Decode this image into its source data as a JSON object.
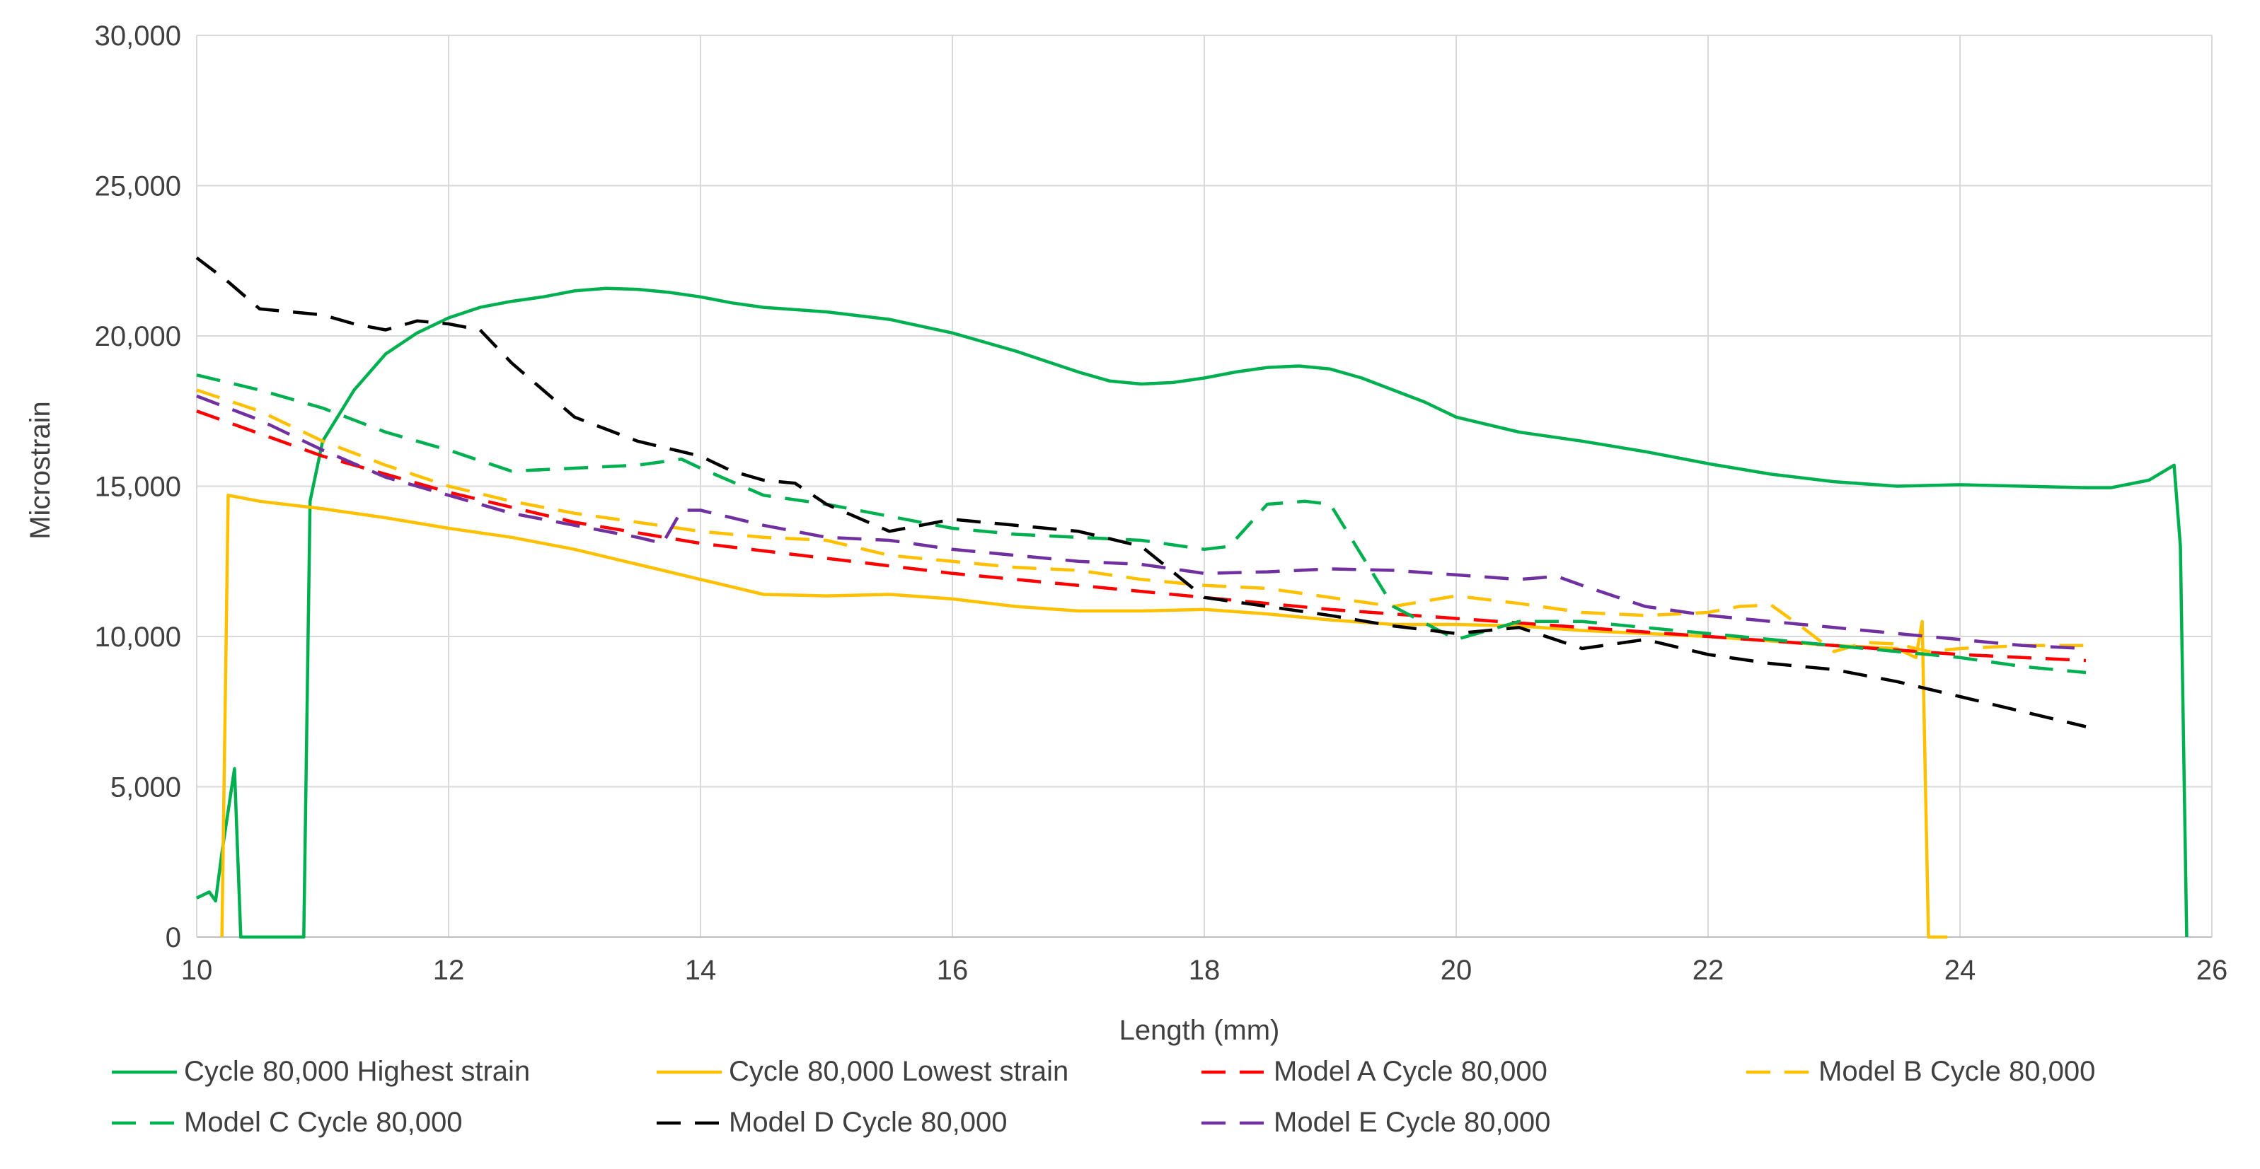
{
  "chart_data": {
    "type": "line",
    "title": "",
    "xlabel": "Length (mm)",
    "ylabel": "Microstrain",
    "xlim": [
      10,
      26
    ],
    "ylim": [
      0,
      30000
    ],
    "xticks": [
      10,
      12,
      14,
      16,
      18,
      20,
      22,
      24,
      26
    ],
    "xtick_labels": [
      "10",
      "12",
      "14",
      "16",
      "18",
      "20",
      "22",
      "24",
      "26"
    ],
    "yticks": [
      0,
      5000,
      10000,
      15000,
      20000,
      25000,
      30000
    ],
    "ytick_labels": [
      "0",
      "5,000",
      "10,000",
      "15,000",
      "20,000",
      "25,000",
      "30,000"
    ],
    "grid": true,
    "legend_position": "bottom",
    "series": [
      {
        "name": "Cycle 80,000 Highest strain",
        "color": "#00b050",
        "dash": "solid",
        "points": [
          [
            10,
            1300
          ],
          [
            10.1,
            1500
          ],
          [
            10.15,
            1200
          ],
          [
            10.2,
            2800
          ],
          [
            10.3,
            5600
          ],
          [
            10.35,
            0
          ],
          [
            10.85,
            0
          ],
          [
            10.9,
            14500
          ],
          [
            11,
            16500
          ],
          [
            11.25,
            18200
          ],
          [
            11.5,
            19400
          ],
          [
            11.75,
            20100
          ],
          [
            12,
            20600
          ],
          [
            12.25,
            20950
          ],
          [
            12.5,
            21150
          ],
          [
            12.75,
            21300
          ],
          [
            13,
            21500
          ],
          [
            13.25,
            21580
          ],
          [
            13.5,
            21550
          ],
          [
            13.75,
            21450
          ],
          [
            14,
            21300
          ],
          [
            14.25,
            21100
          ],
          [
            14.5,
            20950
          ],
          [
            15,
            20800
          ],
          [
            15.5,
            20550
          ],
          [
            16,
            20100
          ],
          [
            16.5,
            19500
          ],
          [
            17,
            18800
          ],
          [
            17.25,
            18500
          ],
          [
            17.5,
            18400
          ],
          [
            17.75,
            18450
          ],
          [
            18,
            18600
          ],
          [
            18.25,
            18800
          ],
          [
            18.5,
            18950
          ],
          [
            18.75,
            19000
          ],
          [
            19,
            18900
          ],
          [
            19.25,
            18600
          ],
          [
            19.5,
            18200
          ],
          [
            19.75,
            17800
          ],
          [
            20,
            17300
          ],
          [
            20.5,
            16800
          ],
          [
            21,
            16500
          ],
          [
            21.5,
            16150
          ],
          [
            22,
            15750
          ],
          [
            22.5,
            15400
          ],
          [
            23,
            15150
          ],
          [
            23.5,
            15000
          ],
          [
            24,
            15050
          ],
          [
            24.5,
            15000
          ],
          [
            25,
            14950
          ],
          [
            25.2,
            14950
          ],
          [
            25.5,
            15200
          ],
          [
            25.7,
            15700
          ],
          [
            25.75,
            13000
          ],
          [
            25.8,
            0
          ]
        ]
      },
      {
        "name": "Cycle 80,000 Lowest strain",
        "color": "#ffc000",
        "dash": "solid",
        "points": [
          [
            10.2,
            0
          ],
          [
            10.25,
            14700
          ],
          [
            10.5,
            14500
          ],
          [
            11,
            14250
          ],
          [
            11.5,
            13950
          ],
          [
            12,
            13600
          ],
          [
            12.5,
            13300
          ],
          [
            13,
            12900
          ],
          [
            13.5,
            12400
          ],
          [
            14,
            11900
          ],
          [
            14.5,
            11400
          ],
          [
            15,
            11350
          ],
          [
            15.5,
            11400
          ],
          [
            16,
            11250
          ],
          [
            16.5,
            11000
          ],
          [
            17,
            10850
          ],
          [
            17.5,
            10850
          ],
          [
            18,
            10900
          ],
          [
            18.5,
            10750
          ],
          [
            19,
            10550
          ],
          [
            19.5,
            10400
          ],
          [
            20,
            10400
          ],
          [
            20.5,
            10350
          ],
          [
            21,
            10200
          ],
          [
            21.5,
            10100
          ],
          [
            22,
            10000
          ],
          [
            22.5,
            9850
          ],
          [
            23,
            9700
          ],
          [
            23.5,
            9600
          ],
          [
            23.65,
            9300
          ],
          [
            23.7,
            10500
          ],
          [
            23.75,
            0
          ],
          [
            23.9,
            0
          ]
        ]
      },
      {
        "name": "Model A Cycle 80,000",
        "color": "#ff0000",
        "dash": "dashed",
        "points": [
          [
            10,
            17500
          ],
          [
            11,
            16000
          ],
          [
            12,
            14800
          ],
          [
            13,
            13800
          ],
          [
            14,
            13100
          ],
          [
            15,
            12600
          ],
          [
            16,
            12100
          ],
          [
            17,
            11700
          ],
          [
            18,
            11300
          ],
          [
            19,
            10900
          ],
          [
            20,
            10600
          ],
          [
            21,
            10300
          ],
          [
            22,
            10000
          ],
          [
            23,
            9700
          ],
          [
            24,
            9400
          ],
          [
            25,
            9200
          ]
        ]
      },
      {
        "name": "Model B Cycle 80,000",
        "color": "#ffc000",
        "dash": "dashed",
        "points": [
          [
            10,
            18200
          ],
          [
            10.5,
            17500
          ],
          [
            11,
            16500
          ],
          [
            11.5,
            15700
          ],
          [
            12,
            15000
          ],
          [
            12.5,
            14500
          ],
          [
            13,
            14100
          ],
          [
            13.5,
            13800
          ],
          [
            14,
            13500
          ],
          [
            14.5,
            13300
          ],
          [
            15,
            13200
          ],
          [
            15.5,
            12700
          ],
          [
            16,
            12500
          ],
          [
            16.5,
            12300
          ],
          [
            17,
            12200
          ],
          [
            17.5,
            11900
          ],
          [
            18,
            11700
          ],
          [
            18.5,
            11600
          ],
          [
            19,
            11300
          ],
          [
            19.5,
            11000
          ],
          [
            20,
            11350
          ],
          [
            20.5,
            11100
          ],
          [
            21,
            10800
          ],
          [
            21.5,
            10700
          ],
          [
            22,
            10800
          ],
          [
            22.25,
            11000
          ],
          [
            22.5,
            11050
          ],
          [
            22.75,
            10300
          ],
          [
            23,
            9500
          ],
          [
            23.25,
            9800
          ],
          [
            23.5,
            9750
          ],
          [
            23.75,
            9500
          ],
          [
            24,
            9600
          ],
          [
            24.5,
            9700
          ],
          [
            25,
            9700
          ]
        ]
      },
      {
        "name": "Model C Cycle 80,000",
        "color": "#00b050",
        "dash": "dashed",
        "points": [
          [
            10,
            18700
          ],
          [
            10.5,
            18200
          ],
          [
            11,
            17600
          ],
          [
            11.5,
            16800
          ],
          [
            12,
            16200
          ],
          [
            12.5,
            15500
          ],
          [
            13,
            15600
          ],
          [
            13.5,
            15700
          ],
          [
            13.85,
            15900
          ],
          [
            14,
            15600
          ],
          [
            14.5,
            14700
          ],
          [
            15,
            14400
          ],
          [
            15.5,
            14000
          ],
          [
            16,
            13600
          ],
          [
            16.5,
            13400
          ],
          [
            17,
            13300
          ],
          [
            17.5,
            13200
          ],
          [
            18,
            12900
          ],
          [
            18.2,
            13000
          ],
          [
            18.5,
            14400
          ],
          [
            18.8,
            14500
          ],
          [
            19,
            14400
          ],
          [
            19.5,
            11000
          ],
          [
            20,
            9900
          ],
          [
            20.5,
            10500
          ],
          [
            21,
            10500
          ],
          [
            21.5,
            10300
          ],
          [
            22,
            10100
          ],
          [
            22.5,
            9900
          ],
          [
            23,
            9700
          ],
          [
            23.5,
            9500
          ],
          [
            24,
            9300
          ],
          [
            24.5,
            9000
          ],
          [
            25,
            8800
          ]
        ]
      },
      {
        "name": "Model D Cycle 80,000",
        "color": "#000000",
        "dash": "dashed",
        "points": [
          [
            10,
            22600
          ],
          [
            10.25,
            21800
          ],
          [
            10.5,
            20900
          ],
          [
            11,
            20700
          ],
          [
            11.25,
            20400
          ],
          [
            11.5,
            20200
          ],
          [
            11.75,
            20500
          ],
          [
            12,
            20400
          ],
          [
            12.25,
            20200
          ],
          [
            12.5,
            19100
          ],
          [
            13,
            17300
          ],
          [
            13.5,
            16500
          ],
          [
            14,
            16000
          ],
          [
            14.25,
            15500
          ],
          [
            14.5,
            15200
          ],
          [
            14.75,
            15100
          ],
          [
            15,
            14400
          ],
          [
            15.5,
            13500
          ],
          [
            16,
            13900
          ],
          [
            16.5,
            13700
          ],
          [
            17,
            13500
          ],
          [
            17.5,
            13000
          ],
          [
            18,
            11300
          ],
          [
            18.5,
            11000
          ],
          [
            19,
            10700
          ],
          [
            19.5,
            10350
          ],
          [
            20,
            10100
          ],
          [
            20.5,
            10300
          ],
          [
            21,
            9600
          ],
          [
            21.5,
            9900
          ],
          [
            22,
            9400
          ],
          [
            22.5,
            9100
          ],
          [
            23,
            8900
          ],
          [
            23.5,
            8500
          ],
          [
            24,
            8000
          ],
          [
            24.5,
            7500
          ],
          [
            25,
            7000
          ]
        ]
      },
      {
        "name": "Model E Cycle 80,000",
        "color": "#7030a0",
        "dash": "dashed",
        "points": [
          [
            10,
            18000
          ],
          [
            10.5,
            17200
          ],
          [
            11,
            16200
          ],
          [
            11.5,
            15300
          ],
          [
            12,
            14700
          ],
          [
            12.5,
            14100
          ],
          [
            13,
            13700
          ],
          [
            13.5,
            13300
          ],
          [
            13.7,
            13100
          ],
          [
            13.85,
            14200
          ],
          [
            14,
            14200
          ],
          [
            14.5,
            13700
          ],
          [
            15,
            13300
          ],
          [
            15.5,
            13200
          ],
          [
            16,
            12900
          ],
          [
            16.5,
            12700
          ],
          [
            17,
            12500
          ],
          [
            17.5,
            12400
          ],
          [
            18,
            12100
          ],
          [
            18.5,
            12150
          ],
          [
            19,
            12250
          ],
          [
            19.5,
            12200
          ],
          [
            20,
            12050
          ],
          [
            20.5,
            11900
          ],
          [
            20.8,
            12000
          ],
          [
            21,
            11700
          ],
          [
            21.5,
            11000
          ],
          [
            22,
            10700
          ],
          [
            22.5,
            10500
          ],
          [
            23,
            10300
          ],
          [
            23.5,
            10100
          ],
          [
            24,
            9900
          ],
          [
            24.5,
            9700
          ],
          [
            25,
            9600
          ]
        ]
      }
    ]
  }
}
